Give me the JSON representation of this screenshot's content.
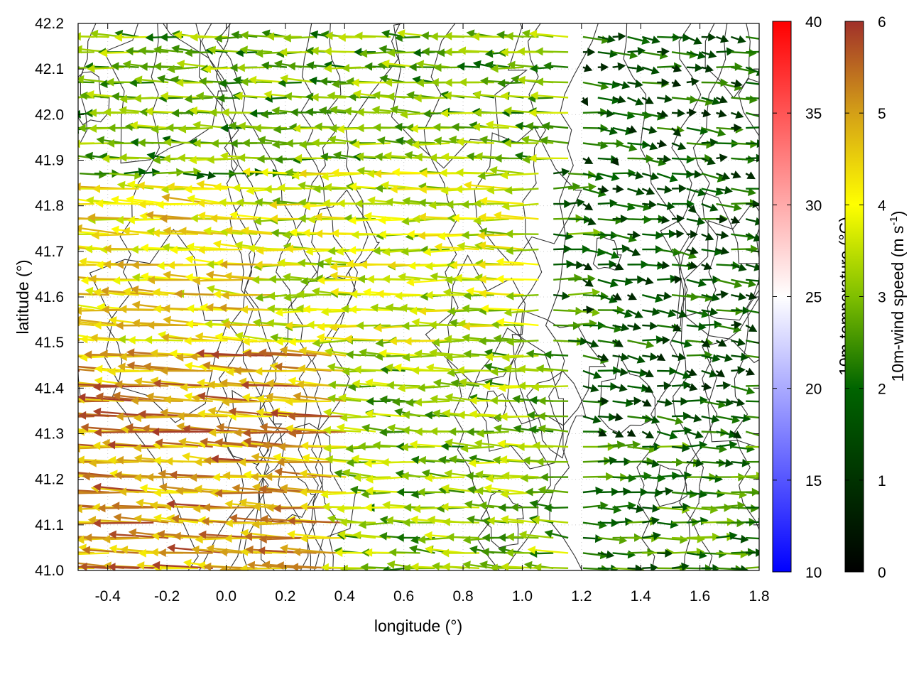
{
  "chart_data": {
    "type": "vector-field",
    "xlabel": "longitude (°)",
    "ylabel": "latitude (°)",
    "xlim": [
      -0.5,
      1.8
    ],
    "ylim": [
      41.0,
      42.2
    ],
    "xticks": [
      "-0.4",
      "-0.2",
      "0.0",
      "0.2",
      "0.4",
      "0.6",
      "0.8",
      "1.0",
      "1.2",
      "1.4",
      "1.6",
      "1.8"
    ],
    "xtick_values": [
      -0.4,
      -0.2,
      0.0,
      0.2,
      0.4,
      0.6,
      0.8,
      1.0,
      1.2,
      1.4,
      1.6,
      1.8
    ],
    "yticks": [
      "41.0",
      "41.1",
      "41.2",
      "41.3",
      "41.4",
      "41.5",
      "41.6",
      "41.7",
      "41.8",
      "41.9",
      "42.0",
      "42.1",
      "42.2"
    ],
    "ytick_values": [
      41.0,
      41.1,
      41.2,
      41.3,
      41.4,
      41.5,
      41.6,
      41.7,
      41.8,
      41.9,
      42.0,
      42.1,
      42.2
    ],
    "grid": true,
    "colorbars": [
      {
        "label": "10m-temperature (°C)",
        "range": [
          10,
          40
        ],
        "ticks": [
          "10",
          "15",
          "20",
          "25",
          "30",
          "35",
          "40"
        ],
        "tick_values": [
          10,
          15,
          20,
          25,
          30,
          35,
          40
        ],
        "colors": [
          "#0000ff",
          "#ffffff",
          "#ff0000"
        ]
      },
      {
        "label": "10m-wind speed (m s",
        "label_sup": "-1",
        "label_end": ")",
        "range": [
          0,
          6
        ],
        "ticks": [
          "0",
          "1",
          "2",
          "3",
          "4",
          "5",
          "6"
        ],
        "tick_values": [
          0,
          1,
          2,
          3,
          4,
          5,
          6
        ],
        "colors": [
          "#000000",
          "#006400",
          "#7fbf00",
          "#ffff00",
          "#d4a017",
          "#a0302a"
        ]
      }
    ],
    "contours": "terrain elevation isolines (grey)",
    "wind_regions": [
      {
        "lon": [
          -0.5,
          0.45
        ],
        "lat": [
          41.0,
          41.5
        ],
        "u": -3.8,
        "v": 0.15,
        "speed": 5.0
      },
      {
        "lon": [
          -0.5,
          0.2
        ],
        "lat": [
          41.5,
          41.85
        ],
        "u": -3.2,
        "v": 0.2,
        "speed": 4.2
      },
      {
        "lon": [
          0.2,
          1.1
        ],
        "lat": [
          41.5,
          41.9
        ],
        "u": -3.0,
        "v": 0.05,
        "speed": 3.6
      },
      {
        "lon": [
          0.45,
          1.2
        ],
        "lat": [
          41.0,
          41.5
        ],
        "u": -2.4,
        "v": 0.1,
        "speed": 3.0
      },
      {
        "lon": [
          -0.5,
          1.2
        ],
        "lat": [
          41.9,
          42.2
        ],
        "u": -2.6,
        "v": 0.1,
        "speed": 2.8
      },
      {
        "lon": [
          1.2,
          1.8
        ],
        "lat": [
          41.3,
          42.2
        ],
        "u": 1.2,
        "v": -0.2,
        "speed": 1.6
      },
      {
        "lon": [
          1.2,
          1.8
        ],
        "lat": [
          41.0,
          41.3
        ],
        "u": 2.4,
        "v": 0.0,
        "speed": 2.2
      }
    ]
  }
}
